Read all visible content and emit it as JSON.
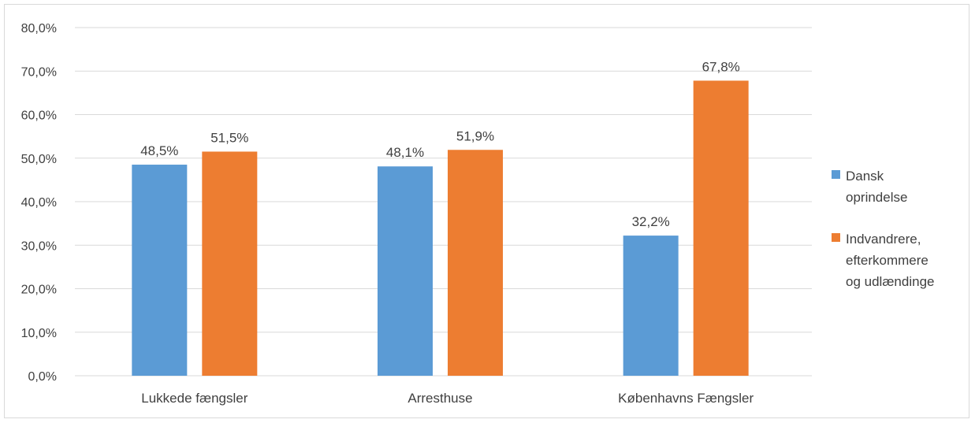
{
  "chart_data": {
    "type": "bar",
    "categories": [
      "Lukkede fængsler",
      "Arresthuse",
      "Københavns Fængsler"
    ],
    "series": [
      {
        "name": "Dansk oprindelse",
        "values": [
          48.5,
          48.1,
          32.2
        ],
        "labels": [
          "48,5%",
          "48,1%",
          "32,2%"
        ],
        "color": "#5b9bd5"
      },
      {
        "name": "Indvandrere, efterkommere og udlændinge",
        "values": [
          51.5,
          51.9,
          67.8
        ],
        "labels": [
          "51,5%",
          "51,9%",
          "67,8%"
        ],
        "color": "#ed7d31"
      }
    ],
    "ylim": [
      0,
      80
    ],
    "yticks": [
      0,
      10,
      20,
      30,
      40,
      50,
      60,
      70,
      80
    ],
    "ytick_labels": [
      "0,0%",
      "10,0%",
      "20,0%",
      "30,0%",
      "40,0%",
      "50,0%",
      "60,0%",
      "70,0%",
      "80,0%"
    ],
    "legend_labels": [
      "Dansk\noprindelse",
      "Indvandrere,\nefterkommere\nog udlændinge"
    ],
    "legend_position": "right",
    "grid": true,
    "gridline_color": "#d9d9d9",
    "title": "",
    "xlabel": "",
    "ylabel": ""
  }
}
